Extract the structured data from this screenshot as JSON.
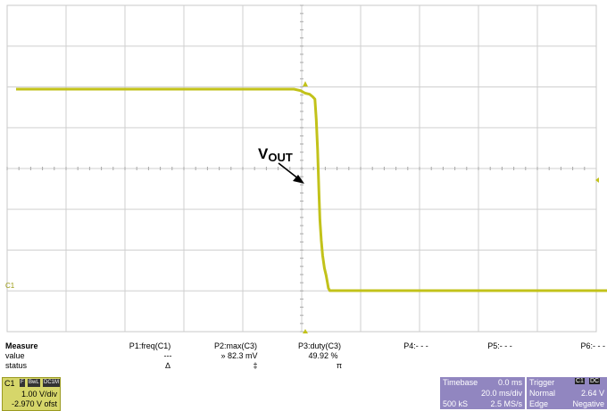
{
  "annotation": {
    "v_label": "V",
    "v_sub": "OUT"
  },
  "channel_marker": "C1",
  "measure": {
    "title": "Measure",
    "params": [
      "P1:freq(C1)",
      "P2:max(C3)",
      "P3:duty(C3)",
      "P4:- - -",
      "P5:- - -",
      "P6:- - -"
    ],
    "value_label": "value",
    "values": [
      "---",
      "» 82.3 mV",
      "49.92 %"
    ],
    "status_label": "status",
    "status_glyphs": [
      "∆",
      "‡",
      "π"
    ]
  },
  "channel_box": {
    "name": "C1",
    "badges": [
      "F",
      "BwL",
      "DC1M"
    ],
    "scale": "1.00 V/div",
    "offset": "-2.970 V ofst"
  },
  "timebase": {
    "label": "Timebase",
    "delay": "0.0 ms",
    "scale": "20.0 ms/div",
    "samples": "500 kS",
    "rate": "2.5 MS/s"
  },
  "trigger": {
    "label": "Trigger",
    "badges": [
      "C1",
      "DC"
    ],
    "mode": "Normal",
    "level": "2.64 V",
    "type": "Edge",
    "slope": "Negative"
  },
  "trace_color": "#c2c21a",
  "trace": {
    "high": 4.0,
    "low": 0.0,
    "points": [
      [
        0,
        4.0
      ],
      [
        6.2,
        4.0
      ],
      [
        6.35,
        3.97
      ],
      [
        6.45,
        3.92
      ],
      [
        6.55,
        3.9
      ],
      [
        6.62,
        3.85
      ],
      [
        6.67,
        3.8
      ],
      [
        6.7,
        3.4
      ],
      [
        6.73,
        2.8
      ],
      [
        6.76,
        1.9
      ],
      [
        6.78,
        1.4
      ],
      [
        6.81,
        1.0
      ],
      [
        6.84,
        0.7
      ],
      [
        6.88,
        0.45
      ],
      [
        6.92,
        0.3
      ],
      [
        6.95,
        0.15
      ],
      [
        6.97,
        0.05
      ],
      [
        7.0,
        0.0
      ],
      [
        13.3,
        0.0
      ]
    ]
  }
}
